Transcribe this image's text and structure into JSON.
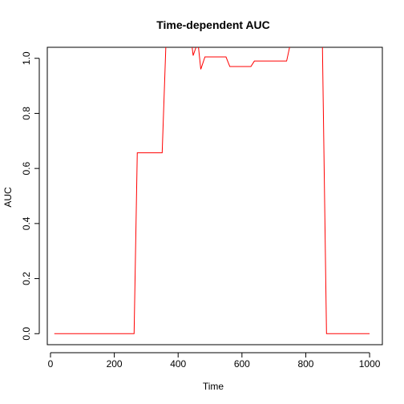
{
  "chart_data": {
    "type": "line",
    "title": "Time-dependent AUC",
    "xlabel": "Time",
    "ylabel": "AUC",
    "xlim": [
      -10,
      1040
    ],
    "ylim": [
      -0.04,
      1.04
    ],
    "x_ticks": [
      0,
      200,
      400,
      600,
      800,
      1000
    ],
    "x_tick_labels": [
      "0",
      "200",
      "400",
      "600",
      "800",
      "1000"
    ],
    "y_ticks": [
      0.0,
      0.2,
      0.4,
      0.6,
      0.8,
      1.0
    ],
    "y_tick_labels": [
      "0.0",
      "0.2",
      "0.4",
      "0.6",
      "0.8",
      "1.0"
    ],
    "grid": false,
    "legend": "none",
    "series": [
      {
        "color": "#ff0000",
        "x": [
          12,
          262,
          272,
          350,
          362,
          442,
          447,
          462,
          471,
          484,
          550,
          562,
          628,
          639,
          740,
          753,
          852,
          865,
          1000
        ],
        "y": [
          0.0,
          0.0,
          0.657,
          0.657,
          1.06,
          1.06,
          1.01,
          1.06,
          0.96,
          1.005,
          1.005,
          0.97,
          0.97,
          0.99,
          0.99,
          1.06,
          1.06,
          0.0,
          0.0
        ]
      }
    ]
  }
}
